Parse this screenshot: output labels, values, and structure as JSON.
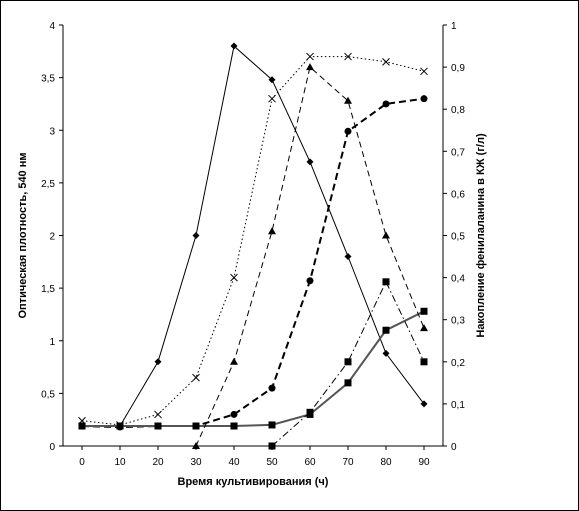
{
  "chart_data": {
    "type": "line",
    "title": "",
    "xlabel": "Время культивирования (ч)",
    "ylabel_left": "Оптическая плотность, 540 нм",
    "ylabel_right": "Накопление фенилаланина в КЖ (г/л)",
    "x_ticks": [
      "0",
      "10",
      "20",
      "30",
      "40",
      "50",
      "60",
      "70",
      "80",
      "90"
    ],
    "y_left_ticks": [
      "0",
      "0,5",
      "1",
      "1,5",
      "2",
      "2,5",
      "3",
      "3,5",
      "4"
    ],
    "y_right_ticks": [
      "0",
      "0,1",
      "0,2",
      "0,3",
      "0,4",
      "0,5",
      "0,6",
      "0,7",
      "0,8",
      "0,9",
      "1"
    ],
    "xlim": [
      -5,
      95
    ],
    "ylim_left": [
      0,
      4
    ],
    "ylim_right": [
      0,
      1
    ],
    "grid": false,
    "legend": "none",
    "series": [
      {
        "axis": "left",
        "marker": "diamond",
        "line": "solid",
        "width": 1,
        "points": [
          [
            0,
            0.19
          ],
          [
            10,
            0.19
          ],
          [
            20,
            0.8
          ],
          [
            30,
            2.0
          ],
          [
            40,
            3.8
          ],
          [
            50,
            3.48
          ],
          [
            60,
            2.7
          ],
          [
            70,
            1.8
          ],
          [
            80,
            0.88
          ],
          [
            90,
            0.4
          ]
        ]
      },
      {
        "axis": "left",
        "marker": "x",
        "line": "dotted",
        "width": 1,
        "points": [
          [
            0,
            0.24
          ],
          [
            10,
            0.2
          ],
          [
            20,
            0.3
          ],
          [
            30,
            0.65
          ],
          [
            40,
            1.6
          ],
          [
            50,
            3.3
          ],
          [
            60,
            3.7
          ],
          [
            70,
            3.7
          ],
          [
            80,
            3.65
          ],
          [
            90,
            3.56
          ]
        ]
      },
      {
        "axis": "left",
        "marker": "circle",
        "line": "dashed-bold",
        "width": 2,
        "points": [
          [
            0,
            0.19
          ],
          [
            10,
            0.18
          ],
          [
            20,
            0.19
          ],
          [
            30,
            0.19
          ],
          [
            40,
            0.3
          ],
          [
            50,
            0.55
          ],
          [
            60,
            1.57
          ],
          [
            70,
            2.99
          ],
          [
            80,
            3.25
          ],
          [
            90,
            3.3
          ]
        ]
      },
      {
        "axis": "left",
        "marker": "square",
        "line": "solid-bold",
        "width": 2,
        "color": "#555555",
        "points": [
          [
            0,
            0.19
          ],
          [
            10,
            0.19
          ],
          [
            20,
            0.19
          ],
          [
            30,
            0.19
          ],
          [
            40,
            0.19
          ],
          [
            50,
            0.2
          ],
          [
            60,
            0.3
          ],
          [
            70,
            0.6
          ],
          [
            80,
            1.1
          ],
          [
            90,
            1.28
          ]
        ]
      },
      {
        "axis": "right",
        "marker": "triangle",
        "line": "dashed",
        "width": 1,
        "points": [
          [
            30,
            0.0
          ],
          [
            40,
            0.2
          ],
          [
            50,
            0.51
          ],
          [
            60,
            0.9
          ],
          [
            70,
            0.82
          ],
          [
            80,
            0.5
          ],
          [
            90,
            0.28
          ]
        ]
      },
      {
        "axis": "right",
        "marker": "square",
        "line": "dash-dot",
        "width": 1,
        "points": [
          [
            50,
            0.0
          ],
          [
            60,
            0.08
          ],
          [
            70,
            0.2
          ],
          [
            80,
            0.39
          ],
          [
            90,
            0.2
          ]
        ]
      }
    ]
  }
}
